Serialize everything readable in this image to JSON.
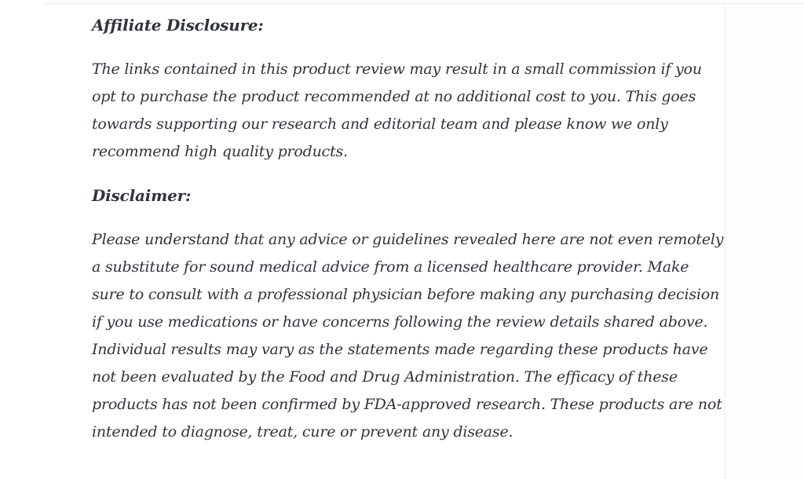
{
  "theme": {
    "page_background": "#ffffff",
    "sidebar_background": "#fdfdfd",
    "divider_color": "#f5f5f5",
    "text_color": "#2f343a"
  },
  "article": {
    "sections": [
      {
        "heading": "Affiliate Disclosure:",
        "body": "The links contained in this product review may result in a small commission if you opt to purchase the product recommended at no additional cost to you. This goes towards supporting our research and editorial team and please know we only recommend high quality products."
      },
      {
        "heading": "Disclaimer:",
        "body": "Please understand that any advice or guidelines revealed here are not even remotely a substitute for sound medical advice from a licensed healthcare provider. Make sure to consult with a professional physician before making any purchasing decision if you use medications or have concerns following the review details shared above. Individual results may vary as the statements made regarding these products have not been evaluated by the Food and Drug Administration. The efficacy of these products has not been confirmed by FDA-approved research. These products are not intended to diagnose, treat, cure or prevent any disease."
      }
    ]
  }
}
